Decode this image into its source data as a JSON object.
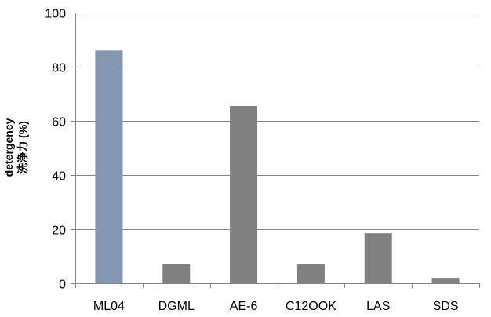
{
  "chart_data": {
    "type": "bar",
    "title": "",
    "xlabel": "",
    "ylabel_lines": [
      "detergency",
      "洗浄力 (%)"
    ],
    "categories": [
      "ML04",
      "DGML",
      "AE-6",
      "C12OOK",
      "LAS",
      "SDS"
    ],
    "values": [
      86,
      7,
      65.5,
      7,
      18.5,
      2
    ],
    "bar_colors": [
      "#8497b0",
      "#808080",
      "#808080",
      "#808080",
      "#808080",
      "#808080"
    ],
    "ylim": [
      0,
      100
    ],
    "yticks": [
      0,
      20,
      40,
      60,
      80,
      100
    ],
    "grid": true,
    "legend": "none",
    "colors": {
      "gridline": "#868686",
      "axis": "#868686",
      "text": "#000000"
    }
  }
}
